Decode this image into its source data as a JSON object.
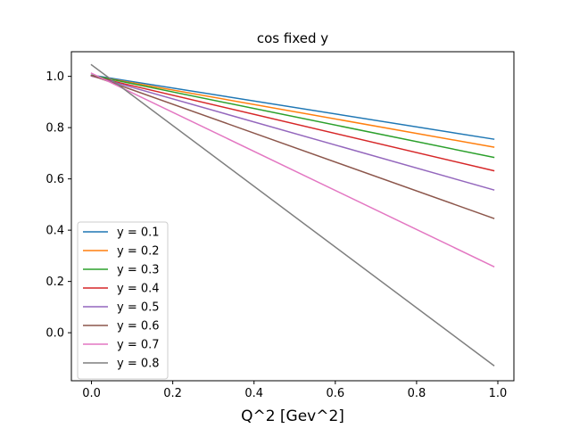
{
  "chart_data": {
    "type": "line",
    "title": "cos fixed y",
    "xlabel": "Q^2 [Gev^2]",
    "ylabel": "",
    "xlim": [
      -0.0495,
      1.0395
    ],
    "ylim": [
      -0.1873,
      1.0961
    ],
    "xticks": [
      0.0,
      0.2,
      0.4,
      0.6,
      0.8,
      1.0
    ],
    "xtick_labels": [
      "0.0",
      "0.2",
      "0.4",
      "0.6",
      "0.8",
      "1.0"
    ],
    "yticks": [
      0.0,
      0.2,
      0.4,
      0.6,
      0.8,
      1.0
    ],
    "ytick_labels": [
      "0.0",
      "0.2",
      "0.4",
      "0.6",
      "0.8",
      "1.0"
    ],
    "grid": false,
    "legend_position": "lower-left",
    "series": [
      {
        "name": "y = 0.1",
        "color": "#1f77b4",
        "x": [
          0.0,
          0.99
        ],
        "values": [
          1.005,
          0.755
        ]
      },
      {
        "name": "y = 0.2",
        "color": "#ff7f0e",
        "x": [
          0.0,
          0.99
        ],
        "values": [
          1.003,
          0.724
        ]
      },
      {
        "name": "y = 0.3",
        "color": "#2ca02c",
        "x": [
          0.0,
          0.99
        ],
        "values": [
          1.004,
          0.684
        ]
      },
      {
        "name": "y = 0.4",
        "color": "#d62728",
        "x": [
          0.0,
          0.99
        ],
        "values": [
          1.001,
          0.632
        ]
      },
      {
        "name": "y = 0.5",
        "color": "#9467bd",
        "x": [
          0.0,
          0.99
        ],
        "values": [
          1.002,
          0.557
        ]
      },
      {
        "name": "y = 0.6",
        "color": "#8c564b",
        "x": [
          0.0,
          0.99
        ],
        "values": [
          1.004,
          0.446
        ]
      },
      {
        "name": "y = 0.7",
        "color": "#e377c2",
        "x": [
          0.0,
          0.99
        ],
        "values": [
          1.012,
          0.258
        ]
      },
      {
        "name": "y = 0.8",
        "color": "#7f7f7f",
        "x": [
          0.0,
          0.99
        ],
        "values": [
          1.045,
          -0.128
        ]
      }
    ]
  }
}
